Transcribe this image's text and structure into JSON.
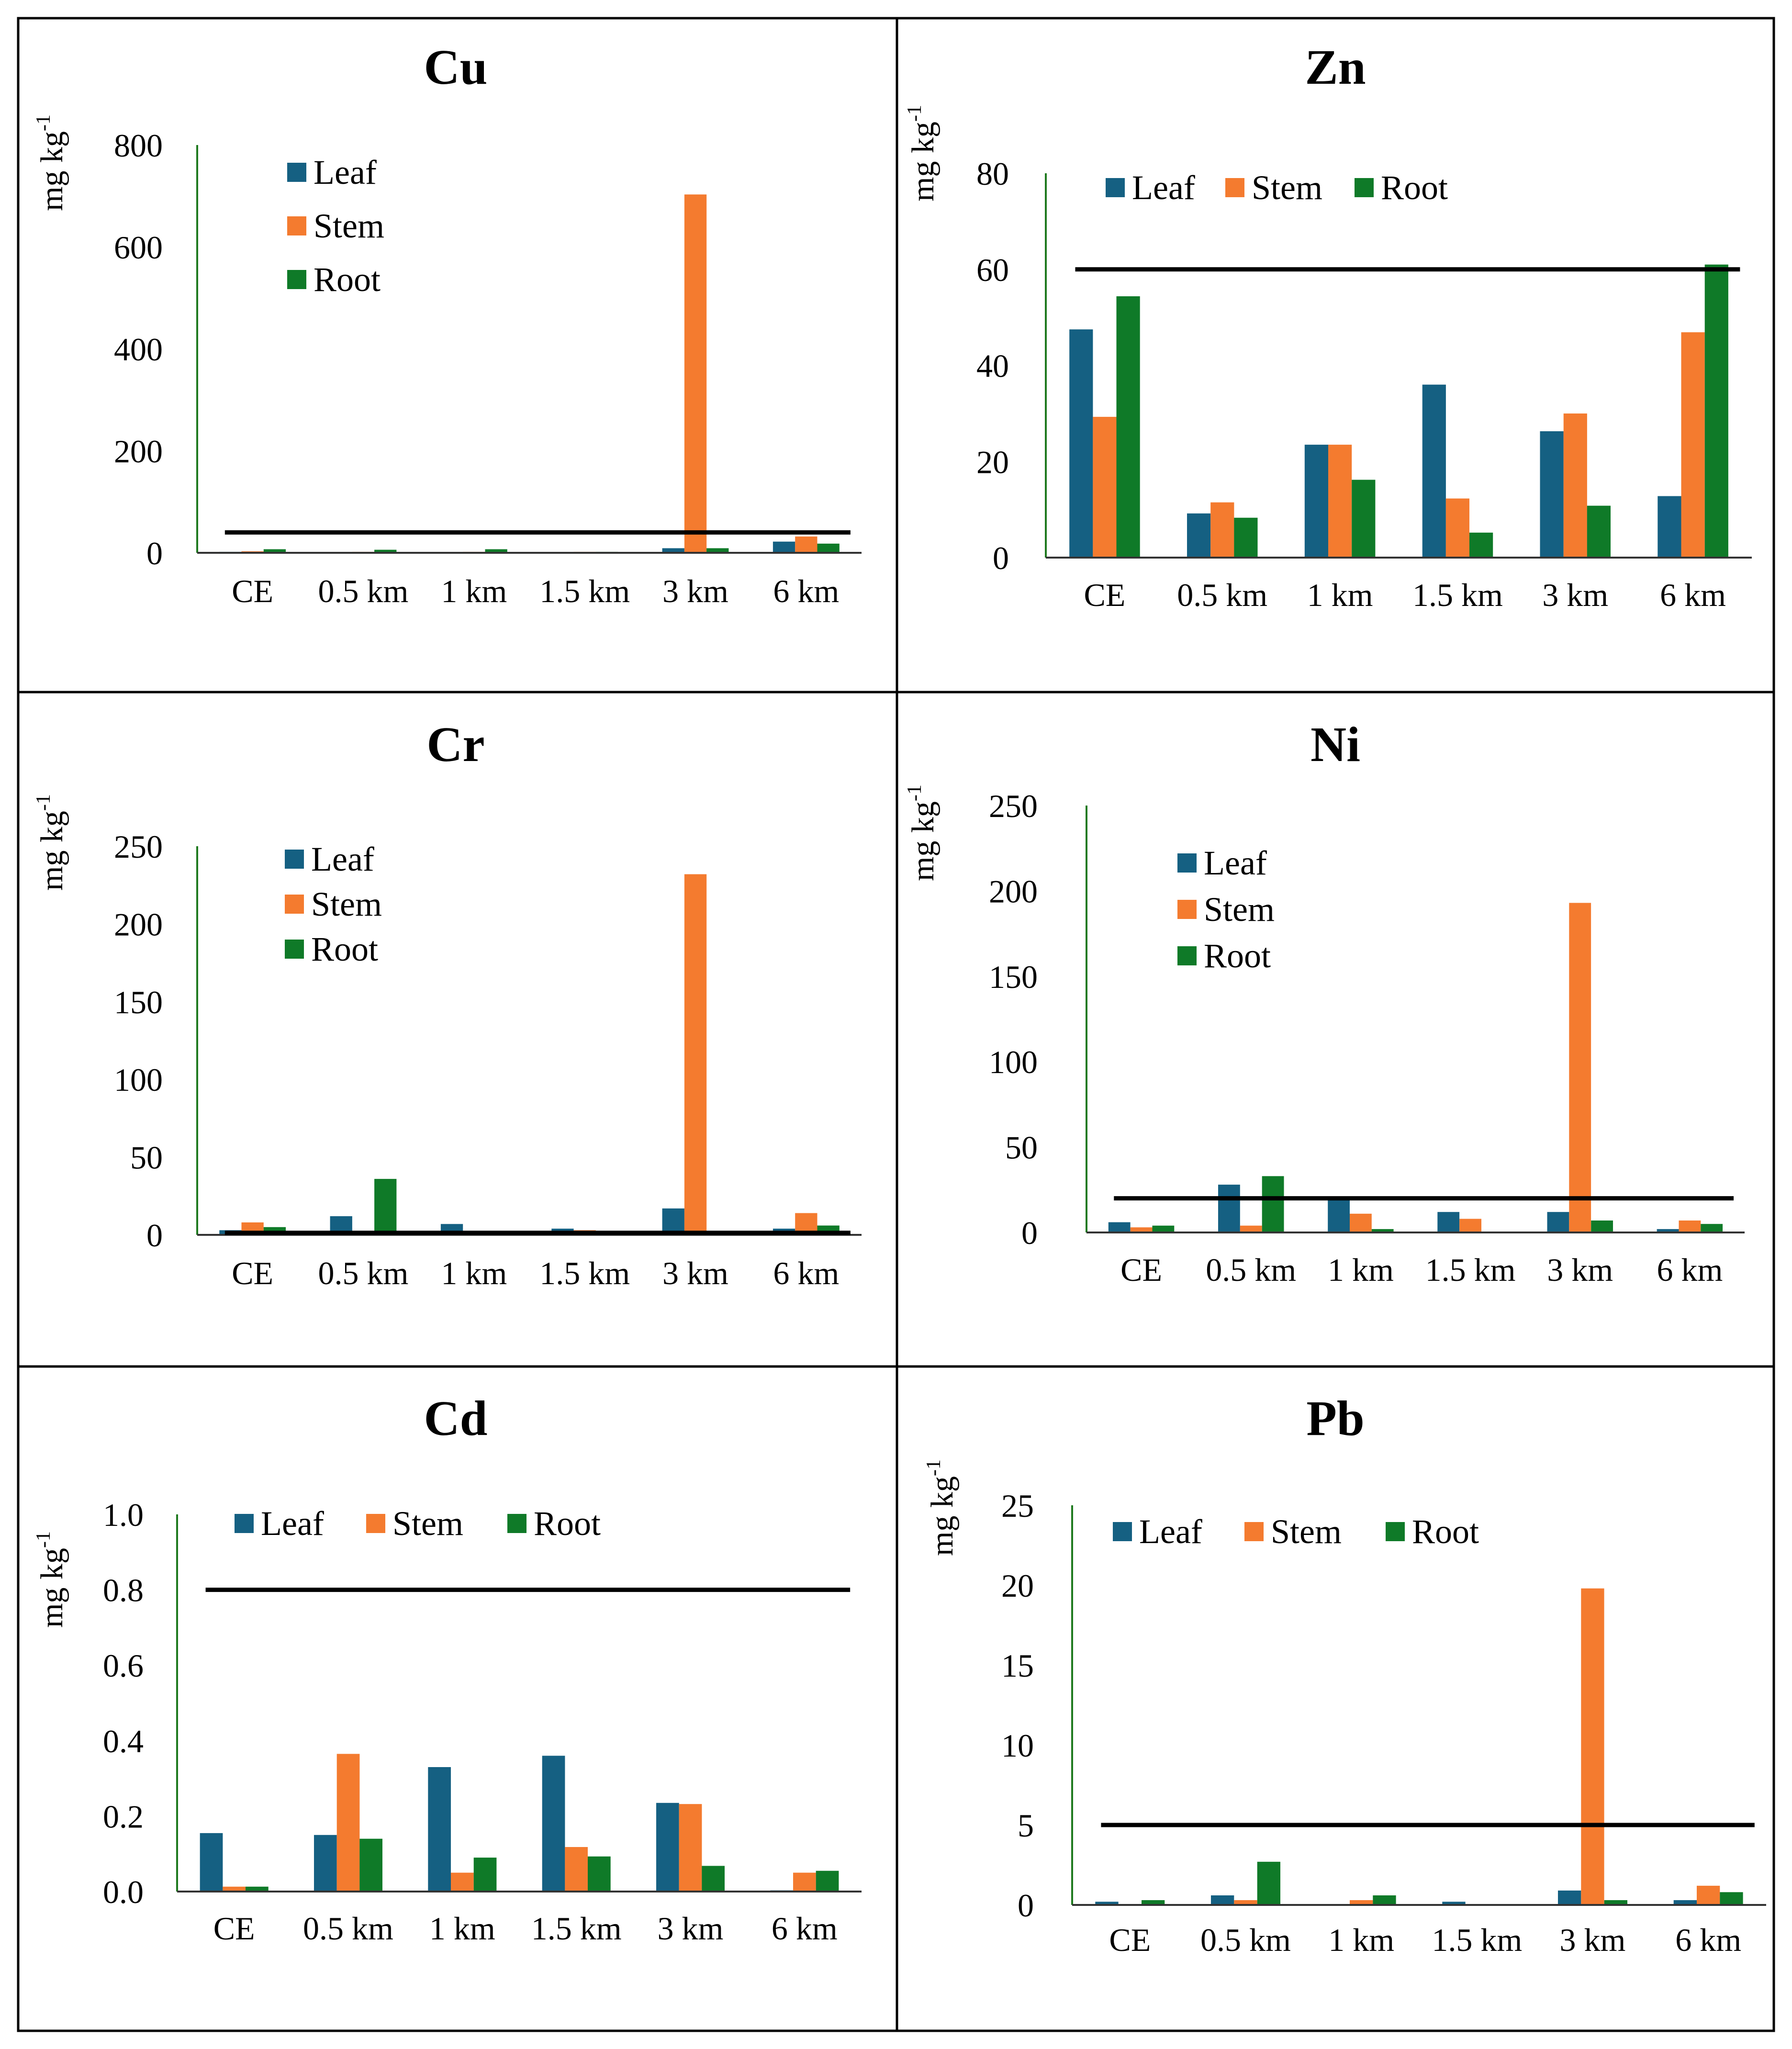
{
  "colors": {
    "Leaf": "#156082",
    "Stem": "#f47b2f",
    "Root": "#0f7a28",
    "reference": "#000000"
  },
  "chart_data": [
    {
      "type": "bar",
      "title": "Cu",
      "ylabel": "mg kg",
      "ylabel_sup": "-1",
      "ylim": [
        0,
        800
      ],
      "yticks": [
        "0",
        "200",
        "400",
        "600",
        "800"
      ],
      "categories": [
        "CE",
        "0.5 km",
        "1 km",
        "1.5 km",
        "3 km",
        "6 km"
      ],
      "series": [
        {
          "name": "Leaf",
          "values": [
            2,
            1,
            1,
            1,
            9,
            22
          ]
        },
        {
          "name": "Stem",
          "values": [
            3,
            2,
            2,
            2,
            703,
            32
          ]
        },
        {
          "name": "Root",
          "values": [
            7,
            6,
            7,
            2,
            9,
            18
          ]
        }
      ],
      "reference_line": 40,
      "legend_layout": "vertical"
    },
    {
      "type": "bar",
      "title": "Zn",
      "ylabel": "mg kg",
      "ylabel_sup": "-1",
      "ylim": [
        0,
        80
      ],
      "yticks": [
        "0",
        "20",
        "40",
        "60",
        "80"
      ],
      "categories": [
        "CE",
        "0.5 km",
        "1 km",
        "1.5 km",
        "3 km",
        "6 km"
      ],
      "series": [
        {
          "name": "Leaf",
          "values": [
            47.5,
            9.2,
            23.5,
            36,
            26.3,
            12.8
          ]
        },
        {
          "name": "Stem",
          "values": [
            29.3,
            11.5,
            23.5,
            12.3,
            30,
            46.9
          ]
        },
        {
          "name": "Root",
          "values": [
            54.4,
            8.3,
            16.2,
            5.2,
            10.8,
            61
          ]
        }
      ],
      "reference_line": 60,
      "legend_layout": "horizontal"
    },
    {
      "type": "bar",
      "title": "Cr",
      "ylabel": "mg kg",
      "ylabel_sup": "-1",
      "ylim": [
        0,
        250
      ],
      "yticks": [
        "0",
        "50",
        "100",
        "150",
        "200",
        "250"
      ],
      "categories": [
        "CE",
        "0.5 km",
        "1 km",
        "1.5 km",
        "3 km",
        "6 km"
      ],
      "series": [
        {
          "name": "Leaf",
          "values": [
            3,
            12,
            7,
            4,
            17,
            4
          ]
        },
        {
          "name": "Stem",
          "values": [
            8,
            1,
            2,
            3,
            232,
            14
          ]
        },
        {
          "name": "Root",
          "values": [
            5,
            36,
            1,
            1,
            1,
            6
          ]
        }
      ],
      "reference_line": 1.3,
      "legend_layout": "vertical"
    },
    {
      "type": "bar",
      "title": "Ni",
      "ylabel": "mg kg",
      "ylabel_sup": "-1",
      "ylim": [
        0,
        250
      ],
      "yticks": [
        "0",
        "50",
        "100",
        "150",
        "200",
        "250"
      ],
      "categories": [
        "CE",
        "0.5 km",
        "1 km",
        "1.5 km",
        "3 km",
        "6 km"
      ],
      "series": [
        {
          "name": "Leaf",
          "values": [
            6,
            28,
            20,
            12,
            12,
            2
          ]
        },
        {
          "name": "Stem",
          "values": [
            3,
            4,
            11,
            8,
            193,
            7
          ]
        },
        {
          "name": "Root",
          "values": [
            4,
            33,
            2,
            0,
            7,
            5
          ]
        }
      ],
      "reference_line": 20,
      "legend_layout": "vertical"
    },
    {
      "type": "bar",
      "title": "Cd",
      "ylabel": "mg kg",
      "ylabel_sup": "-1",
      "ylim": [
        0,
        1.0
      ],
      "yticks": [
        "0.0",
        "0.2",
        "0.4",
        "0.6",
        "0.8",
        "1.0"
      ],
      "categories": [
        "CE",
        "0.5 km",
        "1 km",
        "1.5 km",
        "3 km",
        "6 km"
      ],
      "series": [
        {
          "name": "Leaf",
          "values": [
            0.155,
            0.15,
            0.33,
            0.36,
            0.235,
            0.003
          ]
        },
        {
          "name": "Stem",
          "values": [
            0.013,
            0.365,
            0.05,
            0.118,
            0.232,
            0.05
          ]
        },
        {
          "name": "Root",
          "values": [
            0.013,
            0.14,
            0.09,
            0.093,
            0.068,
            0.055
          ]
        }
      ],
      "reference_line": 0.8,
      "legend_layout": "horizontal"
    },
    {
      "type": "bar",
      "title": "Pb",
      "ylabel": "mg kg",
      "ylabel_sup": "-1",
      "ylim": [
        0,
        25
      ],
      "yticks": [
        "0",
        "5",
        "10",
        "15",
        "20",
        "25"
      ],
      "categories": [
        "CE",
        "0.5 km",
        "1 km",
        "1.5 km",
        "3 km",
        "6 km"
      ],
      "series": [
        {
          "name": "Leaf",
          "values": [
            0.2,
            0.6,
            0,
            0.2,
            0.9,
            0.3
          ]
        },
        {
          "name": "Stem",
          "values": [
            0,
            0.3,
            0.3,
            0,
            19.8,
            1.2
          ]
        },
        {
          "name": "Root",
          "values": [
            0.3,
            2.7,
            0.6,
            0,
            0.3,
            0.8
          ]
        }
      ],
      "reference_line": 5,
      "legend_layout": "horizontal"
    }
  ]
}
